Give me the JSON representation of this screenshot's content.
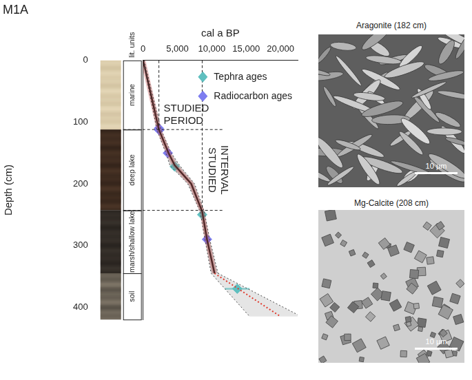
{
  "title": "M1A",
  "chart_data": {
    "type": "line",
    "x_label": "cal a BP",
    "y_label": "Depth (cm)",
    "xlim": [
      0,
      22500
    ],
    "xticks": [
      0,
      {
        "value": 5000,
        "label": "5,000"
      },
      {
        "value": 10000,
        "label": "10,000"
      },
      {
        "value": 15000,
        "label": "15,000"
      },
      {
        "value": 20000,
        "label": "20,000"
      }
    ],
    "ylim": [
      0,
      420
    ],
    "yticks": [
      0,
      100,
      200,
      300,
      400
    ],
    "grid": false,
    "legend": "top-right",
    "age_model": {
      "x": [
        0,
        2300,
        3700,
        4600,
        7000,
        8600,
        9300,
        10400
      ],
      "values": [
        0,
        112,
        150,
        170,
        200,
        245,
        290,
        345
      ],
      "x_min": [
        0,
        2000,
        3300,
        3900,
        6500,
        8300,
        9000,
        9900
      ],
      "x_max": [
        150,
        2600,
        4100,
        5300,
        7500,
        8900,
        9700,
        10900
      ],
      "color": "#1a1a1a",
      "line_style": "solid"
    },
    "extrapolation": {
      "x": [
        10400,
        20000
      ],
      "values": [
        345,
        415
      ],
      "x_min": [
        9900,
        15500
      ],
      "x_max": [
        10900,
        23000
      ],
      "color": "#e03a2e",
      "line_style": "dotted"
    },
    "series": [
      {
        "name": "Tephra ages",
        "type": "scatter",
        "marker": "diamond",
        "color": "#5fbfbf",
        "x": [
          4600,
          8600,
          13700
        ],
        "values": [
          172,
          250,
          370
        ],
        "x_error": [
          200,
          300,
          1800
        ]
      },
      {
        "name": "Radiocarbon ages",
        "type": "scatter",
        "marker": "diamond",
        "color": "#7d7df0",
        "x": [
          2300,
          2350,
          3600,
          9300
        ],
        "values": [
          110,
          113,
          150,
          290
        ]
      }
    ],
    "studied": [
      {
        "label": "STUDIED PERIOD",
        "x": 2300,
        "y": 112
      },
      {
        "label": "STUDIED INTERVAL",
        "x": 8600,
        "y": 243
      }
    ],
    "lith_units_title": "lit. units",
    "lith_units": [
      {
        "label": "marine",
        "top": 0,
        "bottom": 112
      },
      {
        "label": "deep lake",
        "top": 112,
        "bottom": 243
      },
      {
        "label": "marsh/shallow lake",
        "top": 243,
        "bottom": 345
      },
      {
        "label": "soil",
        "top": 345,
        "bottom": 420
      }
    ]
  },
  "images": [
    {
      "label": "Aragonite (182 cm)",
      "scale_bar": "10 µm"
    },
    {
      "label": "Mg-Calcite (208 cm)",
      "scale_bar": "10 µm"
    }
  ]
}
